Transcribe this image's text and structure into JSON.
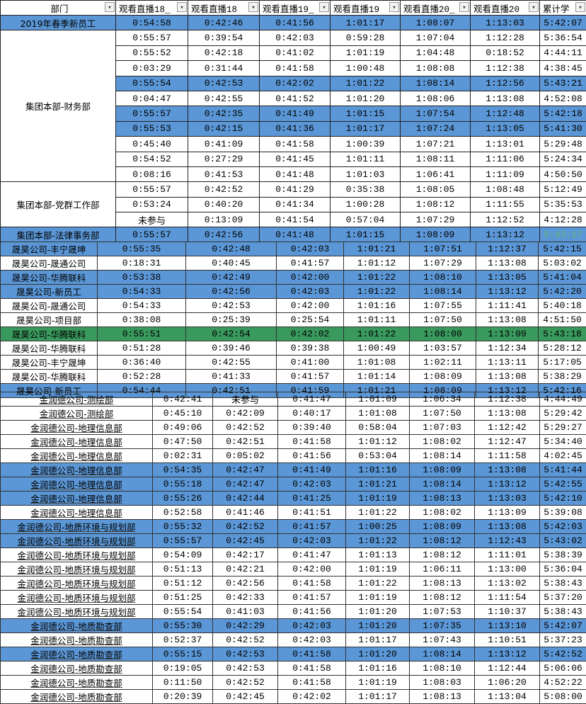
{
  "colors": {
    "blue": "#5b97d6",
    "green": "#3a9a5e",
    "white": "#ffffff",
    "green_text": "#62b873"
  },
  "header": {
    "labels": [
      "部门",
      "观看直播18_",
      "观看直播18",
      "观看直播19_",
      "观看直播19",
      "观看直播20_",
      "观看直播20",
      "累计学"
    ],
    "filter_icon": "▾"
  },
  "section1": {
    "groups": [
      {
        "dept": "2019年春季新员工",
        "rows": [
          {
            "values": [
              "0:54:58",
              "0:42:46",
              "0:41:56",
              "1:01:17",
              "1:08:07",
              "1:13:03",
              "5:42:07"
            ],
            "hl": "blue"
          }
        ]
      },
      {
        "dept": "集团本部-财务部",
        "rows": [
          {
            "values": [
              "0:55:57",
              "0:39:54",
              "0:42:03",
              "0:59:28",
              "1:07:04",
              "1:12:28",
              "5:36:54"
            ],
            "hl": null
          },
          {
            "values": [
              "0:55:52",
              "0:42:18",
              "0:41:02",
              "1:01:19",
              "1:04:48",
              "0:18:52",
              "4:44:11"
            ],
            "hl": null
          },
          {
            "values": [
              "0:03:29",
              "0:31:44",
              "0:41:58",
              "1:00:48",
              "1:08:08",
              "1:12:38",
              "4:38:45"
            ],
            "hl": null
          },
          {
            "values": [
              "0:55:54",
              "0:42:53",
              "0:42:02",
              "1:01:22",
              "1:08:14",
              "1:12:56",
              "5:43:21"
            ],
            "hl": "blue"
          },
          {
            "values": [
              "0:04:47",
              "0:42:55",
              "0:41:52",
              "1:01:20",
              "1:08:06",
              "1:13:08",
              "4:52:08"
            ],
            "hl": null
          },
          {
            "values": [
              "0:55:57",
              "0:42:35",
              "0:41:49",
              "1:01:15",
              "1:07:54",
              "1:12:48",
              "5:42:18"
            ],
            "hl": "blue"
          },
          {
            "values": [
              "0:55:53",
              "0:42:15",
              "0:41:36",
              "1:01:17",
              "1:07:24",
              "1:13:05",
              "5:41:30"
            ],
            "hl": "blue"
          },
          {
            "values": [
              "0:45:40",
              "0:41:09",
              "0:41:58",
              "1:00:39",
              "1:07:21",
              "1:13:01",
              "5:29:48"
            ],
            "hl": null
          },
          {
            "values": [
              "0:54:52",
              "0:27:29",
              "0:41:45",
              "1:01:11",
              "1:08:11",
              "1:11:06",
              "5:24:34"
            ],
            "hl": null
          },
          {
            "values": [
              "0:08:16",
              "0:41:53",
              "0:41:48",
              "1:01:03",
              "1:06:41",
              "1:11:09",
              "4:50:50"
            ],
            "hl": null
          }
        ]
      },
      {
        "dept": "集团本部-党群工作部",
        "rows": [
          {
            "values": [
              "0:55:57",
              "0:42:52",
              "0:41:29",
              "0:35:38",
              "1:08:05",
              "1:08:48",
              "5:12:49"
            ],
            "hl": null
          },
          {
            "values": [
              "0:53:24",
              "0:40:20",
              "0:41:34",
              "1:00:28",
              "1:08:12",
              "1:11:55",
              "5:35:53"
            ],
            "hl": null
          },
          {
            "values": [
              "未参与",
              "0:13:09",
              "0:41:54",
              "0:57:04",
              "1:07:29",
              "1:12:52",
              "4:12:28"
            ],
            "hl": null
          }
        ]
      },
      {
        "dept": "集团本部-法律事务部",
        "rows": [
          {
            "values": [
              "0:55:57",
              "0:42:56",
              "0:41:48",
              "1:01:15",
              "1:08:09",
              "1:13:12",
              "5:43:17"
            ],
            "hl": "blue",
            "total_text": "green_text"
          }
        ]
      }
    ]
  },
  "section2": {
    "rows": [
      {
        "dept": "晟昊公司-丰宁晟坤",
        "values": [
          "0:55:35",
          "0:42:48",
          "0:42:03",
          "1:01:21",
          "1:07:51",
          "1:12:37",
          "5:42:15"
        ],
        "hl": "blue"
      },
      {
        "dept": "晟昊公司-晟通公司",
        "values": [
          "0:18:31",
          "0:40:45",
          "0:41:57",
          "1:01:12",
          "1:07:29",
          "1:13:08",
          "5:03:02"
        ],
        "hl": null
      },
      {
        "dept": "晟昊公司-华腾联科",
        "values": [
          "0:53:38",
          "0:42:49",
          "0:42:00",
          "1:01:22",
          "1:08:10",
          "1:13:05",
          "5:41:04"
        ],
        "hl": "blue"
      },
      {
        "dept": "晟昊公司-新员工",
        "values": [
          "0:54:33",
          "0:42:56",
          "0:42:03",
          "1:01:22",
          "1:08:14",
          "1:13:12",
          "5:42:20"
        ],
        "hl": "blue"
      },
      {
        "dept": "晟昊公司-晟通公司",
        "values": [
          "0:54:33",
          "0:42:53",
          "0:42:00",
          "1:01:16",
          "1:07:55",
          "1:11:41",
          "5:40:18"
        ],
        "hl": null
      },
      {
        "dept": "晟昊公司-项目部",
        "values": [
          "0:38:08",
          "0:25:39",
          "0:25:54",
          "1:01:11",
          "1:07:50",
          "1:13:08",
          "4:51:50"
        ],
        "hl": null
      },
      {
        "dept": "晟昊公司-华腾联科",
        "values": [
          "0:55:51",
          "0:42:54",
          "0:42:02",
          "1:01:22",
          "1:08:00",
          "1:13:09",
          "5:43:18"
        ],
        "hl": "green"
      },
      {
        "dept": "晟昊公司-华腾联科",
        "values": [
          "0:51:28",
          "0:39:46",
          "0:39:38",
          "1:00:49",
          "1:03:57",
          "1:12:34",
          "5:28:12"
        ],
        "hl": null
      },
      {
        "dept": "晟昊公司-丰宁晟坤",
        "values": [
          "0:36:40",
          "0:42:55",
          "0:41:00",
          "1:01:08",
          "1:02:11",
          "1:13:11",
          "5:17:05"
        ],
        "hl": null
      },
      {
        "dept": "晟昊公司-华腾联科",
        "values": [
          "0:52:28",
          "0:41:33",
          "0:41:57",
          "1:01:14",
          "1:08:09",
          "1:13:08",
          "5:38:29"
        ],
        "hl": null
      },
      {
        "dept": "晟昊公司-新员工",
        "values": [
          "0:54:44",
          "0:42:51",
          "0:41:59",
          "1:01:21",
          "1:08:09",
          "1:13:12",
          "5:42:16"
        ],
        "hl": "blue"
      }
    ]
  },
  "section3": {
    "rows": [
      {
        "dept": "金润德公司-测绘部",
        "values": [
          "0:42:41",
          "未参与",
          "0:41:47",
          "1:01:09",
          "1:06:34",
          "1:12:38",
          "4:44:49"
        ],
        "hl": null
      },
      {
        "dept": "金润德公司-测绘部",
        "values": [
          "0:45:10",
          "0:42:09",
          "0:40:17",
          "1:01:08",
          "1:07:50",
          "1:13:08",
          "5:29:42"
        ],
        "hl": null
      },
      {
        "dept": "金润德公司-地理信息部",
        "values": [
          "0:49:06",
          "0:42:52",
          "0:39:40",
          "0:58:04",
          "1:07:03",
          "1:12:42",
          "5:29:27"
        ],
        "hl": null
      },
      {
        "dept": "金润德公司-地理信息部",
        "values": [
          "0:47:50",
          "0:42:51",
          "0:41:58",
          "1:01:12",
          "1:08:02",
          "1:12:47",
          "5:34:40"
        ],
        "hl": null
      },
      {
        "dept": "金润德公司-地理信息部",
        "values": [
          "0:02:31",
          "0:05:02",
          "0:41:56",
          "0:53:04",
          "1:08:14",
          "1:11:58",
          "4:02:45"
        ],
        "hl": null
      },
      {
        "dept": "金润德公司-地理信息部",
        "values": [
          "0:54:35",
          "0:42:47",
          "0:41:49",
          "1:01:16",
          "1:08:09",
          "1:13:08",
          "5:41:44"
        ],
        "hl": "blue"
      },
      {
        "dept": "金润德公司-地理信息部",
        "values": [
          "0:55:18",
          "0:42:47",
          "0:42:03",
          "1:01:21",
          "1:08:14",
          "1:13:12",
          "5:42:55"
        ],
        "hl": "blue"
      },
      {
        "dept": "金润德公司-地理信息部",
        "values": [
          "0:55:26",
          "0:42:44",
          "0:41:25",
          "1:01:19",
          "1:08:13",
          "1:13:03",
          "5:42:10"
        ],
        "hl": "blue"
      },
      {
        "dept": "金润德公司-地理信息部",
        "values": [
          "0:52:58",
          "0:41:46",
          "0:41:51",
          "1:01:22",
          "1:08:02",
          "1:13:09",
          "5:39:08"
        ],
        "hl": null
      },
      {
        "dept": "金润德公司-地质环境与规划部",
        "values": [
          "0:55:32",
          "0:42:52",
          "0:41:57",
          "1:00:25",
          "1:08:09",
          "1:13:08",
          "5:42:03"
        ],
        "hl": "blue"
      },
      {
        "dept": "金润德公司-地质环境与规划部",
        "values": [
          "0:55:57",
          "0:42:45",
          "0:42:03",
          "1:01:22",
          "1:08:12",
          "1:12:43",
          "5:43:02"
        ],
        "hl": "blue"
      },
      {
        "dept": "金润德公司-地质环境与规划部",
        "values": [
          "0:54:09",
          "0:42:17",
          "0:41:47",
          "1:01:13",
          "1:08:12",
          "1:11:01",
          "5:38:39"
        ],
        "hl": null
      },
      {
        "dept": "金润德公司-地质环境与规划部",
        "values": [
          "0:51:13",
          "0:42:21",
          "0:42:00",
          "1:01:19",
          "1:06:11",
          "1:13:00",
          "5:36:04"
        ],
        "hl": null
      },
      {
        "dept": "金润德公司-地质环境与规划部",
        "values": [
          "0:51:12",
          "0:42:56",
          "0:41:58",
          "1:01:22",
          "1:08:13",
          "1:13:02",
          "5:38:43"
        ],
        "hl": null
      },
      {
        "dept": "金润德公司-地质环境与规划部",
        "values": [
          "0:51:25",
          "0:42:33",
          "0:41:57",
          "1:01:19",
          "1:08:12",
          "1:11:54",
          "5:37:20"
        ],
        "hl": null
      },
      {
        "dept": "金润德公司-地质环境与规划部",
        "values": [
          "0:55:54",
          "0:41:03",
          "0:41:56",
          "1:01:20",
          "1:07:53",
          "1:10:37",
          "5:38:43"
        ],
        "hl": null
      },
      {
        "dept": "金润德公司-地质勘查部",
        "values": [
          "0:55:30",
          "0:42:29",
          "0:42:03",
          "1:01:20",
          "1:07:35",
          "1:13:10",
          "5:42:07"
        ],
        "hl": "blue"
      },
      {
        "dept": "金润德公司-地质勘查部",
        "values": [
          "0:52:37",
          "0:42:52",
          "0:42:03",
          "1:01:17",
          "1:07:43",
          "1:10:51",
          "5:37:23"
        ],
        "hl": null
      },
      {
        "dept": "金润德公司-地质勘查部",
        "values": [
          "0:55:15",
          "0:42:53",
          "0:41:58",
          "1:01:20",
          "1:08:14",
          "1:13:12",
          "5:42:52"
        ],
        "hl": "blue"
      },
      {
        "dept": "金润德公司-地质勘查部",
        "values": [
          "0:19:05",
          "0:42:53",
          "0:41:58",
          "1:01:16",
          "1:08:10",
          "1:12:44",
          "5:06:06"
        ],
        "hl": null
      },
      {
        "dept": "金润德公司-地质勘查部",
        "values": [
          "0:11:50",
          "0:42:52",
          "0:41:58",
          "1:01:19",
          "1:08:03",
          "1:06:20",
          "4:52:22"
        ],
        "hl": null
      },
      {
        "dept": "金润德公司-地质勘查部",
        "values": [
          "0:20:39",
          "0:42:45",
          "0:42:02",
          "1:01:17",
          "1:08:13",
          "1:13:04",
          "5:08:00"
        ],
        "hl": null
      }
    ]
  }
}
